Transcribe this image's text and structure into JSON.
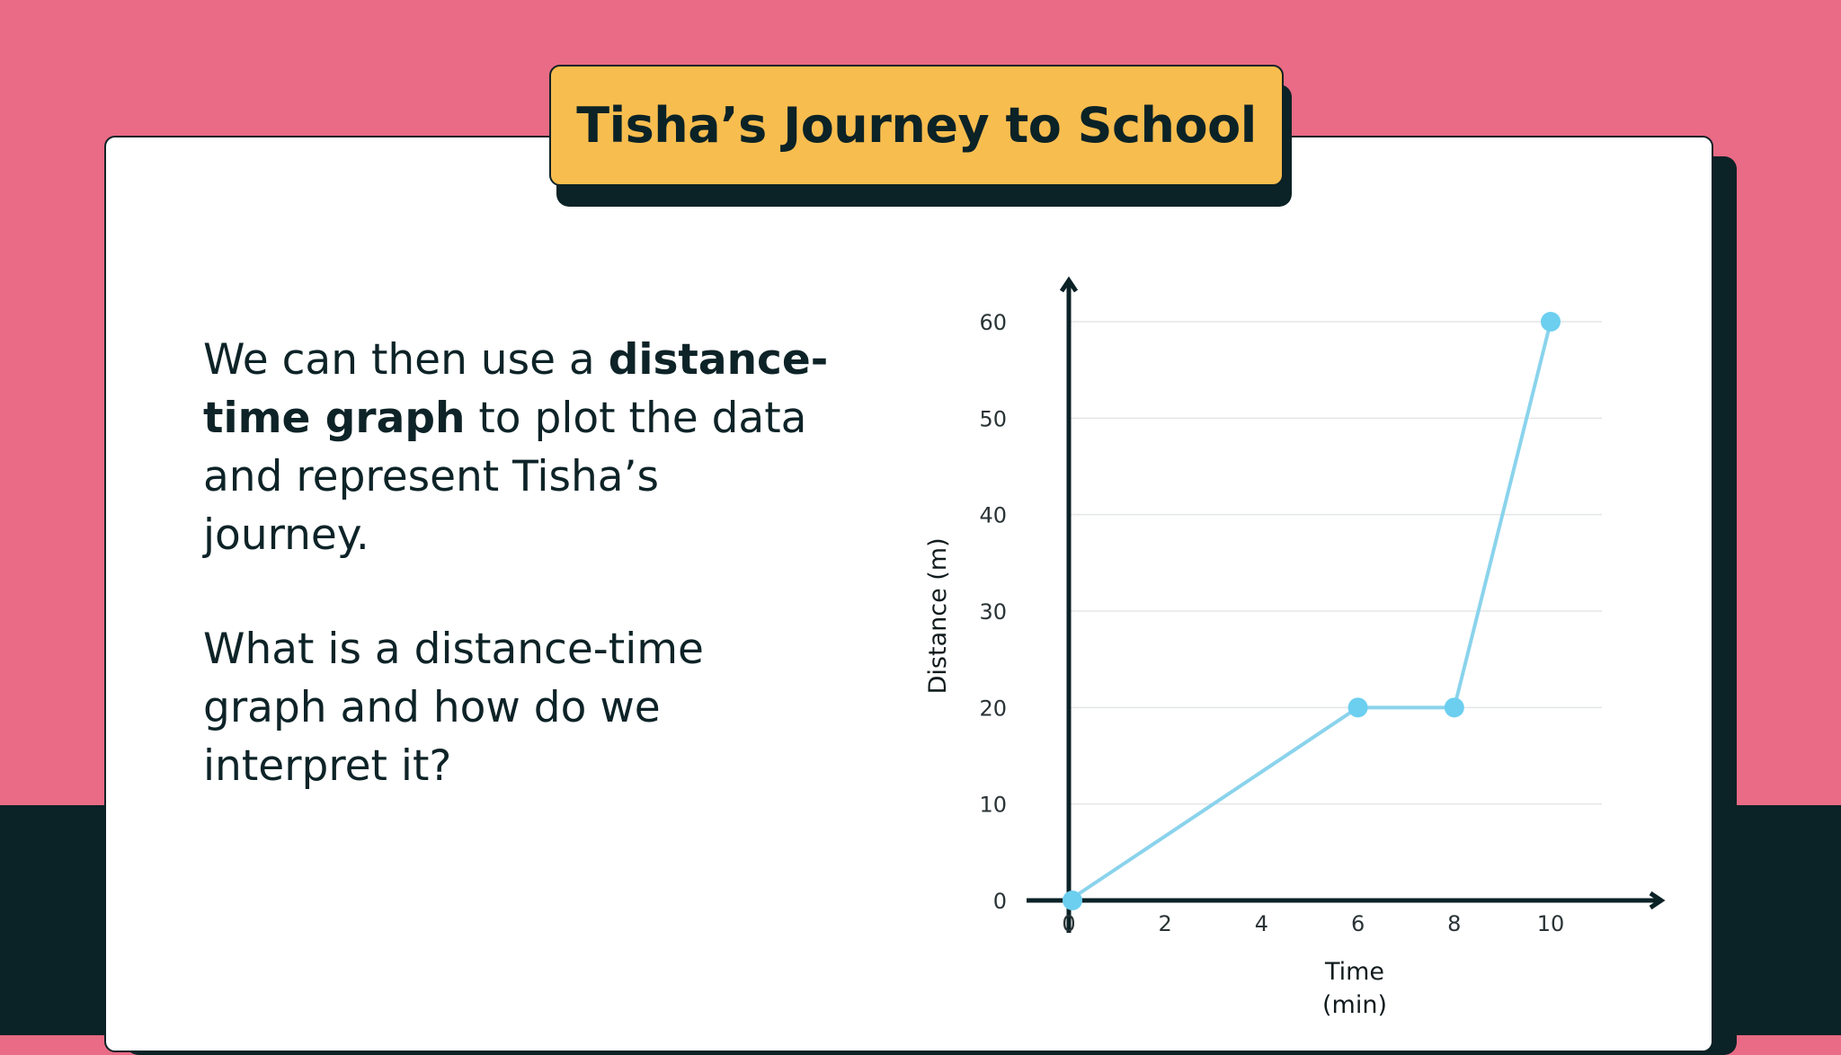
{
  "title": "Tisha’s Journey to School",
  "text": {
    "para1_a": "We can then use a ",
    "para1_bold": "distance-time graph",
    "para1_b": " to plot the data and represent Tisha’s journey.",
    "para2": "What is a distance-time graph and how do we interpret it?"
  },
  "colors": {
    "background": "#e96b85",
    "band": "#0b2226",
    "title_box": "#f8bd4f",
    "series": "#6ccfef",
    "line": "#8ad3ec"
  },
  "chart_data": {
    "type": "line",
    "title": "",
    "xlabel_lines": [
      "Time",
      "(min)"
    ],
    "ylabel": "Distance (m)",
    "x_ticks": [
      0,
      2,
      4,
      6,
      8,
      10
    ],
    "y_ticks": [
      0,
      10,
      20,
      30,
      40,
      50,
      60
    ],
    "xlim": [
      0,
      12
    ],
    "ylim": [
      0,
      60
    ],
    "grid": true,
    "series": [
      {
        "x": [
          0,
          6,
          8,
          10
        ],
        "y": [
          0,
          20,
          20,
          60
        ]
      }
    ]
  }
}
